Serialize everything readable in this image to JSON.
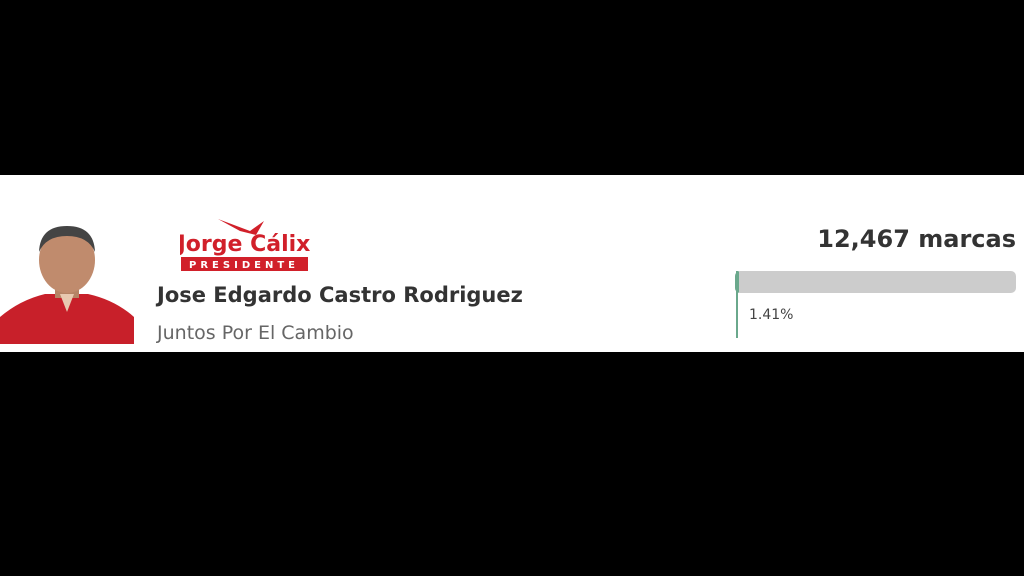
{
  "candidate": {
    "logo": {
      "name": "Jorge Cálix",
      "subtitle": "PRESIDENTE"
    },
    "name": "Jose Edgardo Castro Rodriguez",
    "party": "Juntos Por El Cambio"
  },
  "result": {
    "votes": "12,467 marcas",
    "percent": {
      "value": 1.41,
      "label": "1.41%"
    }
  }
}
